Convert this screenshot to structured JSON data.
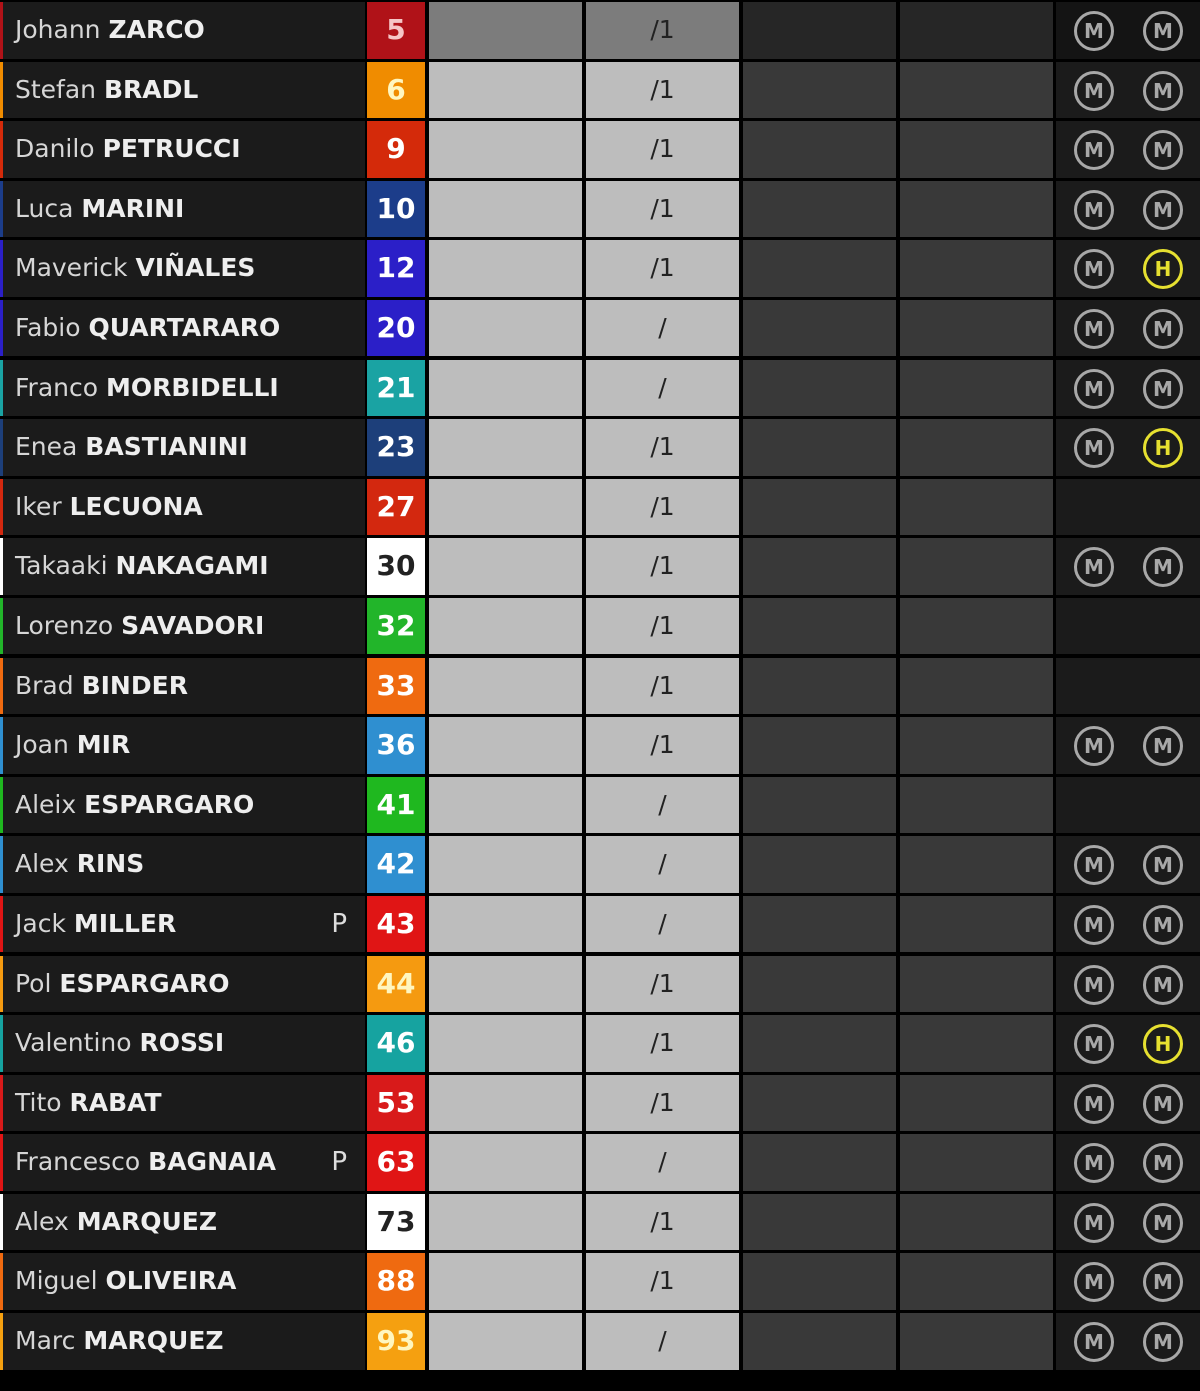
{
  "riders": [
    {
      "first": "Johann",
      "last": "ZARCO",
      "number": "5",
      "color": "#b01218",
      "text": "#f6c6c6",
      "lap": "/1",
      "pole": "",
      "tyres": [
        "M",
        "M"
      ],
      "dim": true
    },
    {
      "first": "Stefan",
      "last": "BRADL",
      "number": "6",
      "color": "#f08c00",
      "text": "#fff6c0",
      "lap": "/1",
      "pole": "",
      "tyres": [
        "M",
        "M"
      ]
    },
    {
      "first": "Danilo",
      "last": "PETRUCCI",
      "number": "9",
      "color": "#d42a0a",
      "text": "#fff",
      "lap": "/1",
      "pole": "",
      "tyres": [
        "M",
        "M"
      ]
    },
    {
      "first": "Luca",
      "last": "MARINI",
      "number": "10",
      "color": "#1c3d8a",
      "text": "#fff",
      "lap": "/1",
      "pole": "",
      "tyres": [
        "M",
        "M"
      ]
    },
    {
      "first": "Maverick",
      "last": "VIÑALES",
      "number": "12",
      "color": "#2b1fc8",
      "text": "#fff",
      "lap": "/1",
      "pole": "",
      "tyres": [
        "M",
        "H"
      ]
    },
    {
      "first": "Fabio",
      "last": "QUARTARARO",
      "number": "20",
      "color": "#2b1fc8",
      "text": "#fff",
      "lap": "/",
      "pole": "",
      "tyres": [
        "M",
        "M"
      ]
    },
    {
      "first": "Franco",
      "last": "MORBIDELLI",
      "number": "21",
      "color": "#1aa3a3",
      "text": "#fff",
      "lap": "/",
      "pole": "",
      "tyres": [
        "M",
        "M"
      ]
    },
    {
      "first": "Enea",
      "last": "BASTIANINI",
      "number": "23",
      "color": "#1d3f7a",
      "text": "#fff",
      "lap": "/1",
      "pole": "",
      "tyres": [
        "M",
        "H"
      ]
    },
    {
      "first": "Iker",
      "last": "LECUONA",
      "number": "27",
      "color": "#d3280f",
      "text": "#fff",
      "lap": "/1",
      "pole": "",
      "tyres": []
    },
    {
      "first": "Takaaki",
      "last": "NAKAGAMI",
      "number": "30",
      "color": "#ffffff",
      "text": "#222",
      "lap": "/1",
      "pole": "",
      "tyres": [
        "M",
        "M"
      ]
    },
    {
      "first": "Lorenzo",
      "last": "SAVADORI",
      "number": "32",
      "color": "#22b52a",
      "text": "#fff",
      "lap": "/1",
      "pole": "",
      "tyres": []
    },
    {
      "first": "Brad",
      "last": "BINDER",
      "number": "33",
      "color": "#ef6a10",
      "text": "#fff",
      "lap": "/1",
      "pole": "",
      "tyres": []
    },
    {
      "first": "Joan",
      "last": "MIR",
      "number": "36",
      "color": "#2f8fd0",
      "text": "#fff",
      "lap": "/1",
      "pole": "",
      "tyres": [
        "M",
        "M"
      ]
    },
    {
      "first": "Aleix",
      "last": "ESPARGARO",
      "number": "41",
      "color": "#1fb81f",
      "text": "#fff",
      "lap": "/",
      "pole": "",
      "tyres": []
    },
    {
      "first": "Alex",
      "last": "RINS",
      "number": "42",
      "color": "#2f8fd0",
      "text": "#fff",
      "lap": "/",
      "pole": "",
      "tyres": [
        "M",
        "M"
      ]
    },
    {
      "first": "Jack",
      "last": "MILLER",
      "number": "43",
      "color": "#e01515",
      "text": "#fff",
      "lap": "/",
      "pole": "P",
      "tyres": [
        "M",
        "M"
      ]
    },
    {
      "first": "Pol",
      "last": "ESPARGARO",
      "number": "44",
      "color": "#f59a10",
      "text": "#fff6c0",
      "lap": "/1",
      "pole": "",
      "tyres": [
        "M",
        "M"
      ]
    },
    {
      "first": "Valentino",
      "last": "ROSSI",
      "number": "46",
      "color": "#16a3a0",
      "text": "#fff",
      "lap": "/1",
      "pole": "",
      "tyres": [
        "M",
        "H"
      ]
    },
    {
      "first": "Tito",
      "last": "RABAT",
      "number": "53",
      "color": "#d81a1a",
      "text": "#fff",
      "lap": "/1",
      "pole": "",
      "tyres": [
        "M",
        "M"
      ]
    },
    {
      "first": "Francesco",
      "last": "BAGNAIA",
      "number": "63",
      "color": "#e01515",
      "text": "#fff",
      "lap": "/",
      "pole": "P",
      "tyres": [
        "M",
        "M"
      ]
    },
    {
      "first": "Alex",
      "last": "MARQUEZ",
      "number": "73",
      "color": "#ffffff",
      "text": "#222",
      "lap": "/1",
      "pole": "",
      "tyres": [
        "M",
        "M"
      ]
    },
    {
      "first": "Miguel",
      "last": "OLIVEIRA",
      "number": "88",
      "color": "#ef6a10",
      "text": "#fff",
      "lap": "/1",
      "pole": "",
      "tyres": [
        "M",
        "M"
      ]
    },
    {
      "first": "Marc",
      "last": "MARQUEZ",
      "number": "93",
      "color": "#f5a010",
      "text": "#fff6c0",
      "lap": "/",
      "pole": "",
      "tyres": [
        "M",
        "M"
      ]
    }
  ]
}
